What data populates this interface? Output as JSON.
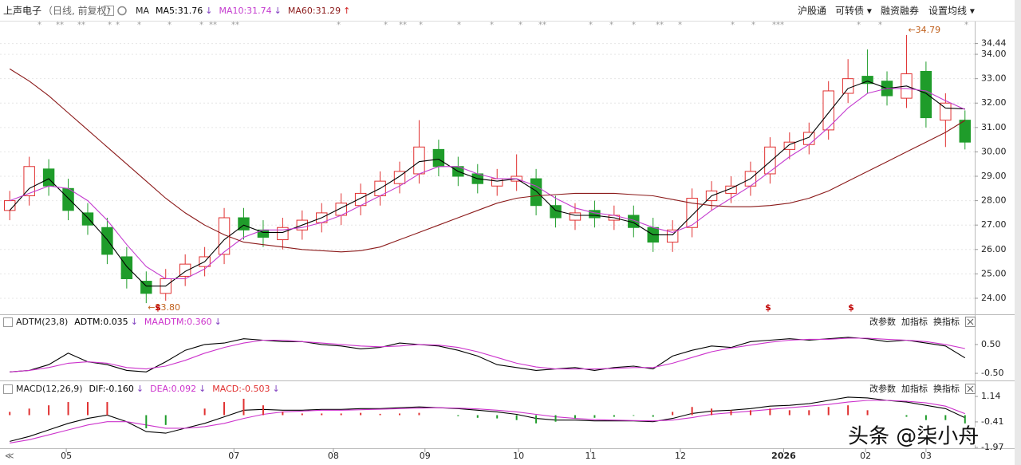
{
  "header": {
    "title": "上声电子",
    "subtitle": "（日线, 前复权）",
    "toolbar": [
      "沪股通",
      "可转债 ▾",
      "融资融券",
      "设置均线 ▾"
    ],
    "panel_buttons": [
      "改参数",
      "加指标",
      "换指标"
    ],
    "nav": "≪",
    "watermark": "头条 @柒小舟"
  },
  "chart_data": [
    {
      "type": "candlestick",
      "title": "MA",
      "grid": true,
      "up_color": "#e03030",
      "down_color": "#1f9c2a",
      "xlim": [
        0,
        50
      ],
      "xticks": [
        {
          "value": 3.4,
          "label": "05"
        },
        {
          "value": 12.0,
          "label": "07"
        },
        {
          "value": 17.1,
          "label": "08"
        },
        {
          "value": 21.8,
          "label": "09"
        },
        {
          "value": 26.6,
          "label": "10"
        },
        {
          "value": 30.3,
          "label": "11"
        },
        {
          "value": 34.9,
          "label": "12"
        },
        {
          "value": 40.2,
          "label": "2026"
        },
        {
          "value": 44.4,
          "label": "02"
        },
        {
          "value": 47.5,
          "label": "03"
        }
      ],
      "ylim": [
        23.41,
        35.31
      ],
      "yticks": [
        {
          "value": 24,
          "label": "24.00"
        },
        {
          "value": 25,
          "label": "25.00"
        },
        {
          "value": 26,
          "label": "26.00"
        },
        {
          "value": 27,
          "label": "27.00"
        },
        {
          "value": 28,
          "label": "28.00"
        },
        {
          "value": 29,
          "label": "29.00"
        },
        {
          "value": 30,
          "label": "30.00"
        },
        {
          "value": 31,
          "label": "31.00"
        },
        {
          "value": 32,
          "label": "32.00"
        },
        {
          "value": 33,
          "label": "33.00"
        },
        {
          "value": 34,
          "label": "34.00"
        },
        34.44
      ],
      "open": [
        27.6,
        28.2,
        29.3,
        28.5,
        27.5,
        26.9,
        25.7,
        24.7,
        24.2,
        24.9,
        25.3,
        25.8,
        27.3,
        26.8,
        26.4,
        26.8,
        27.1,
        27.4,
        27.8,
        28.2,
        28.7,
        29.1,
        30.1,
        29.4,
        29.1,
        28.6,
        28.8,
        28.9,
        27.8,
        27.2,
        27.6,
        27.2,
        27.4,
        26.9,
        26.3,
        26.9,
        28.0,
        28.3,
        28.6,
        29.1,
        30.1,
        30.3,
        30.9,
        32.4,
        33.1,
        32.9,
        32.2,
        33.3,
        31.3,
        31.3
      ],
      "high": [
        28.4,
        29.8,
        29.7,
        28.9,
        27.9,
        27.3,
        26.1,
        25.1,
        25.2,
        25.8,
        26.1,
        27.7,
        27.7,
        27.2,
        27.3,
        27.6,
        27.9,
        28.3,
        28.7,
        29.2,
        29.6,
        31.3,
        30.5,
        29.8,
        29.5,
        29.3,
        29.9,
        29.3,
        28.2,
        27.9,
        28.0,
        27.8,
        27.8,
        27.3,
        27.2,
        28.5,
        28.8,
        29.0,
        29.6,
        30.6,
        30.8,
        31.2,
        32.9,
        33.8,
        34.2,
        33.3,
        34.79,
        33.7,
        32.4,
        31.7
      ],
      "low": [
        27.2,
        27.8,
        28.2,
        27.2,
        26.6,
        25.4,
        24.4,
        23.8,
        23.9,
        24.5,
        24.9,
        25.4,
        26.4,
        26.1,
        26.0,
        26.4,
        26.7,
        27.0,
        27.4,
        27.8,
        28.3,
        28.7,
        29.0,
        28.6,
        28.3,
        28.2,
        28.4,
        27.4,
        26.9,
        26.8,
        26.9,
        26.8,
        26.5,
        25.9,
        25.9,
        26.5,
        27.6,
        27.9,
        28.2,
        28.7,
        29.7,
        29.9,
        30.5,
        32.0,
        32.4,
        31.9,
        31.8,
        31.0,
        30.2,
        30.1
      ],
      "close": [
        28.0,
        29.4,
        28.6,
        27.6,
        27.0,
        25.8,
        24.8,
        24.2,
        24.8,
        25.4,
        25.7,
        27.3,
        26.8,
        26.5,
        26.9,
        27.2,
        27.5,
        27.9,
        28.3,
        28.8,
        29.2,
        30.2,
        29.4,
        29.0,
        28.7,
        28.9,
        29.0,
        27.8,
        27.3,
        27.5,
        27.3,
        27.4,
        26.9,
        26.3,
        26.8,
        28.1,
        28.4,
        28.6,
        29.2,
        30.2,
        30.4,
        30.8,
        32.5,
        33.0,
        32.8,
        32.3,
        33.2,
        31.4,
        32.0,
        30.4
      ],
      "series": [
        {
          "name": "MA5:31.76",
          "trend": "↓",
          "color": "#000000",
          "values": [
            27.6,
            28.5,
            28.9,
            28.1,
            27.3,
            26.4,
            25.3,
            24.5,
            24.5,
            25.1,
            25.5,
            26.4,
            27.0,
            26.7,
            26.7,
            27.0,
            27.3,
            27.7,
            28.1,
            28.5,
            29.0,
            29.6,
            29.7,
            29.2,
            28.9,
            28.8,
            28.9,
            28.4,
            27.6,
            27.4,
            27.4,
            27.3,
            27.1,
            26.6,
            26.6,
            27.4,
            28.2,
            28.5,
            28.9,
            29.6,
            30.3,
            30.6,
            31.6,
            32.6,
            32.9,
            32.6,
            32.7,
            32.4,
            31.8,
            31.76
          ]
        },
        {
          "name": "MA10:31.74",
          "trend": "↓",
          "color": "#c43ccf",
          "values": [
            28.0,
            28.3,
            28.6,
            28.5,
            28.0,
            27.2,
            26.2,
            25.3,
            24.8,
            24.8,
            25.2,
            25.9,
            26.5,
            26.8,
            26.8,
            26.9,
            27.1,
            27.4,
            27.8,
            28.2,
            28.6,
            29.1,
            29.4,
            29.4,
            29.1,
            28.9,
            28.9,
            28.6,
            28.1,
            27.7,
            27.5,
            27.4,
            27.2,
            26.9,
            26.7,
            27.0,
            27.6,
            28.1,
            28.6,
            29.2,
            29.8,
            30.3,
            31.0,
            31.8,
            32.4,
            32.6,
            32.6,
            32.5,
            32.1,
            31.74
          ]
        },
        {
          "name": "MA60:31.29",
          "trend": "↑",
          "color": "#8b1a1a",
          "values": [
            33.4,
            32.9,
            32.3,
            31.6,
            30.9,
            30.2,
            29.5,
            28.8,
            28.1,
            27.5,
            27.0,
            26.6,
            26.3,
            26.2,
            26.1,
            26.0,
            25.95,
            25.9,
            25.95,
            26.1,
            26.4,
            26.7,
            27.0,
            27.3,
            27.6,
            27.9,
            28.1,
            28.2,
            28.25,
            28.3,
            28.3,
            28.3,
            28.25,
            28.2,
            28.05,
            27.9,
            27.8,
            27.75,
            27.75,
            27.8,
            27.9,
            28.1,
            28.4,
            28.8,
            29.2,
            29.6,
            30.0,
            30.4,
            30.8,
            31.29
          ]
        }
      ],
      "annotations": [
        {
          "text": "←34.79",
          "value": 34.79
        },
        {
          "text": "←23.80",
          "value": 23.8
        }
      ],
      "event_marks": [
        "*",
        "**",
        "**",
        "*",
        "*",
        "*",
        "*",
        "*",
        "**",
        "**",
        "*",
        "*",
        "**",
        "*",
        "*",
        "*",
        "*",
        "**",
        "*",
        "*",
        "*",
        "**",
        "*",
        "*",
        "*",
        "***",
        "*",
        "*",
        "*"
      ],
      "s_marks": [
        "$",
        "$",
        "$"
      ]
    },
    {
      "type": "line",
      "title": "ADTM(23,8)",
      "ylim": [
        -0.72,
        1.44
      ],
      "yticks": [
        {
          "value": 0.5,
          "label": "0.50"
        },
        {
          "value": -0.5,
          "label": "-0.50"
        }
      ],
      "series": [
        {
          "name": "ADTM:0.035",
          "trend": "↓",
          "color": "#000000",
          "values": [
            -0.45,
            -0.4,
            -0.2,
            0.2,
            -0.1,
            -0.2,
            -0.4,
            -0.45,
            -0.1,
            0.3,
            0.5,
            0.55,
            0.7,
            0.65,
            0.6,
            0.6,
            0.5,
            0.45,
            0.35,
            0.4,
            0.55,
            0.5,
            0.45,
            0.3,
            0.1,
            -0.2,
            -0.3,
            -0.4,
            -0.35,
            -0.3,
            -0.4,
            -0.3,
            -0.25,
            -0.35,
            0.1,
            0.3,
            0.45,
            0.4,
            0.6,
            0.65,
            0.7,
            0.65,
            0.7,
            0.75,
            0.7,
            0.6,
            0.65,
            0.55,
            0.45,
            0.035
          ]
        },
        {
          "name": "MAADTM:0.360",
          "trend": "↓",
          "color": "#cc33cc",
          "values": [
            -0.45,
            -0.4,
            -0.3,
            -0.15,
            -0.1,
            -0.15,
            -0.3,
            -0.35,
            -0.25,
            -0.05,
            0.2,
            0.4,
            0.55,
            0.65,
            0.65,
            0.6,
            0.55,
            0.5,
            0.45,
            0.42,
            0.45,
            0.5,
            0.48,
            0.4,
            0.25,
            0.05,
            -0.15,
            -0.28,
            -0.35,
            -0.35,
            -0.35,
            -0.33,
            -0.3,
            -0.3,
            -0.15,
            0.05,
            0.25,
            0.38,
            0.48,
            0.58,
            0.65,
            0.68,
            0.68,
            0.72,
            0.72,
            0.68,
            0.65,
            0.6,
            0.5,
            0.36
          ]
        }
      ]
    },
    {
      "type": "line",
      "title": "MACD(12,26,9)",
      "ylim": [
        -1.97,
        1.97
      ],
      "yticks": [
        1.14,
        -0.41,
        -1.97
      ],
      "series": [
        {
          "name": "DIF:-0.160",
          "trend": "↓",
          "color": "#000000",
          "values": [
            -1.6,
            -1.3,
            -0.9,
            -0.5,
            -0.2,
            0,
            -0.4,
            -1.0,
            -1.1,
            -0.8,
            -0.5,
            -0.1,
            0.3,
            0.35,
            0.3,
            0.3,
            0.35,
            0.35,
            0.4,
            0.4,
            0.45,
            0.5,
            0.45,
            0.4,
            0.3,
            0.2,
            0.05,
            -0.2,
            -0.3,
            -0.3,
            -0.35,
            -0.35,
            -0.35,
            -0.4,
            -0.2,
            0.1,
            0.25,
            0.3,
            0.4,
            0.55,
            0.6,
            0.7,
            0.9,
            1.1,
            1.05,
            0.9,
            0.8,
            0.6,
            0.4,
            -0.16
          ]
        },
        {
          "name": "DEA:0.092",
          "trend": "↓",
          "color": "#cc33cc",
          "values": [
            -1.7,
            -1.5,
            -1.2,
            -0.9,
            -0.6,
            -0.4,
            -0.4,
            -0.6,
            -0.8,
            -0.8,
            -0.7,
            -0.5,
            -0.2,
            0.05,
            0.2,
            0.25,
            0.3,
            0.3,
            0.33,
            0.36,
            0.4,
            0.43,
            0.45,
            0.43,
            0.38,
            0.3,
            0.2,
            0.05,
            -0.1,
            -0.2,
            -0.27,
            -0.3,
            -0.33,
            -0.35,
            -0.3,
            -0.15,
            0.05,
            0.15,
            0.25,
            0.35,
            0.45,
            0.55,
            0.65,
            0.8,
            0.9,
            0.9,
            0.85,
            0.75,
            0.55,
            0.092
          ]
        },
        {
          "name": "MACD:-0.503",
          "trend": "↓",
          "kind": "bar",
          "color": "#e03030",
          "down_color": "#1f9c2a",
          "values": [
            0.2,
            0.4,
            0.6,
            0.8,
            0.8,
            0.8,
            0,
            -0.8,
            -0.6,
            0,
            0.4,
            0.8,
            1.0,
            0.6,
            0.2,
            0.1,
            0.1,
            0.1,
            0.14,
            0.08,
            0.1,
            0.14,
            0,
            -0.06,
            -0.16,
            -0.2,
            -0.3,
            -0.5,
            -0.4,
            -0.2,
            -0.16,
            -0.1,
            -0.04,
            -0.1,
            0.2,
            0.5,
            0.4,
            0.3,
            0.3,
            0.4,
            0.3,
            0.3,
            0.5,
            0.6,
            0.3,
            0,
            -0.1,
            -0.3,
            -0.3,
            -0.503
          ]
        }
      ]
    }
  ]
}
